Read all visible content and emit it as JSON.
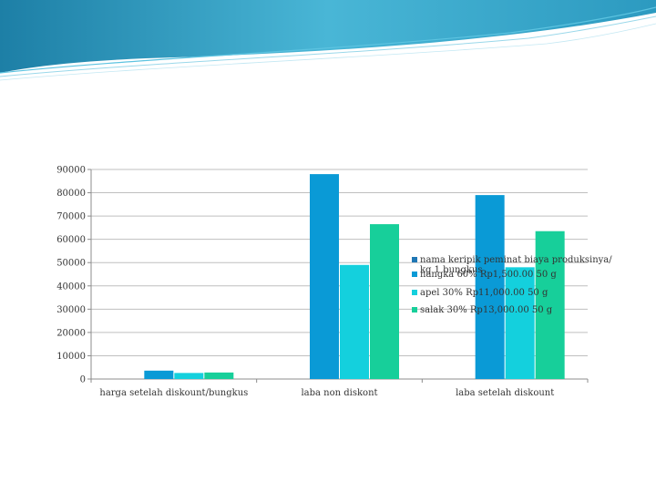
{
  "chart_data": {
    "type": "bar",
    "categories": [
      "harga setelah diskount/bungkus",
      "laba non diskont",
      "laba setelah diskount"
    ],
    "series": [
      {
        "name": "nama keripik peminat biaya produksinya/ kg 1 bungkus",
        "values": [
          null,
          null,
          null
        ],
        "color": "#1f77b4"
      },
      {
        "name": "nangka 60% Rp1,500.00 50 g",
        "values": [
          3600,
          88000,
          79000
        ],
        "color": "#0a9ad6"
      },
      {
        "name": "apel 30% Rp11,000.00 50 g",
        "values": [
          2600,
          49000,
          48000
        ],
        "color": "#14d0dd"
      },
      {
        "name": "salak 30% Rp13,000.00 50 g",
        "values": [
          2800,
          66500,
          63500
        ],
        "color": "#17cf9a"
      }
    ],
    "yticks": [
      0,
      10000,
      20000,
      30000,
      40000,
      50000,
      60000,
      70000,
      80000,
      90000
    ],
    "ylim": [
      0,
      90000
    ],
    "grid": true,
    "legend_position": "right"
  }
}
